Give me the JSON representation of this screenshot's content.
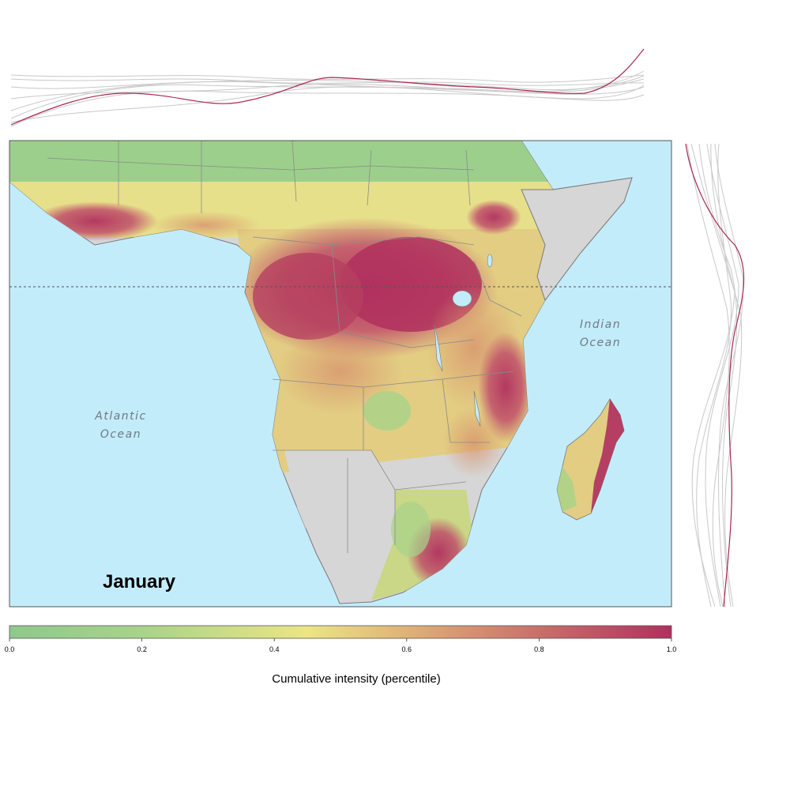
{
  "map": {
    "month_label": "January",
    "ocean_labels": {
      "atlantic_line1": "Atlantic",
      "atlantic_line2": "Ocean",
      "indian_line1": "Indian",
      "indian_line2": "Ocean"
    },
    "colors": {
      "ocean": "#c3ecfb",
      "land_no_data": "#d6d6d6",
      "border": "#7a7a7a",
      "low": "#8ec98c",
      "mid": "#ece584",
      "high": "#b0305e",
      "equator": "#555555",
      "profile_highlight": "#a8284f",
      "profile_other": "#c8c8c8"
    }
  },
  "legend": {
    "title": "Cumulative intensity (percentile)",
    "ticks": [
      "0.0",
      "0.2",
      "0.4",
      "0.6",
      "0.8",
      "1.0"
    ],
    "range": [
      0,
      1
    ]
  }
}
